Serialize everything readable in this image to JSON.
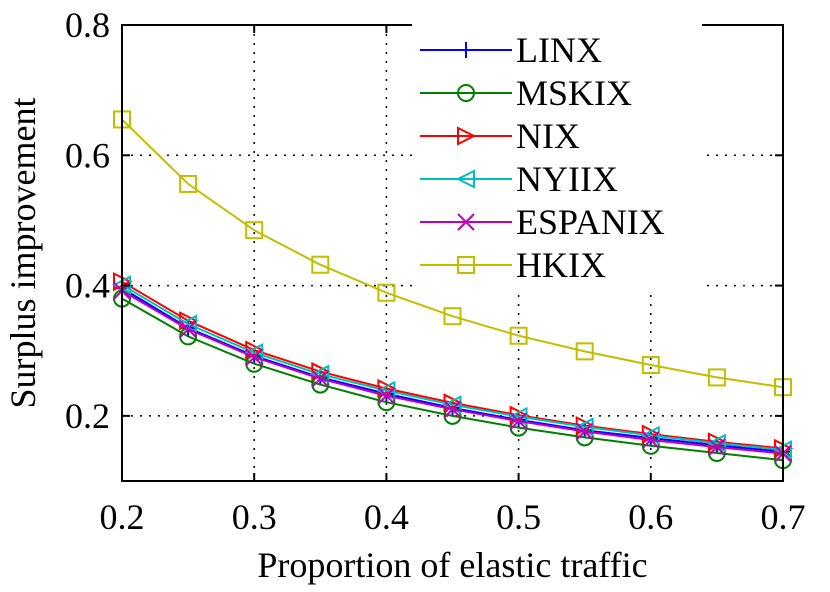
{
  "chart_data": {
    "type": "line",
    "title": "",
    "xlabel": "Proportion of elastic traffic",
    "ylabel": "Surplus improvement",
    "xlim": [
      0.2,
      0.7
    ],
    "ylim": [
      0.1,
      0.8
    ],
    "xticks": [
      0.2,
      0.3,
      0.4,
      0.5,
      0.6,
      0.7
    ],
    "yticks": [
      0.2,
      0.4,
      0.6,
      0.8
    ],
    "xtick_labels": [
      "0.2",
      "0.3",
      "0.4",
      "0.5",
      "0.6",
      "0.7"
    ],
    "ytick_labels": [
      "0.2",
      "0.4",
      "0.6",
      "0.8"
    ],
    "grid": true,
    "legend_position": "top-right",
    "x": [
      0.2,
      0.25,
      0.3,
      0.35,
      0.4,
      0.45,
      0.5,
      0.55,
      0.6,
      0.65,
      0.7
    ],
    "series": [
      {
        "name": "LINX",
        "color": "#0000ff",
        "marker": "plus",
        "values": [
          0.396,
          0.335,
          0.292,
          0.259,
          0.234,
          0.212,
          0.194,
          0.178,
          0.166,
          0.155,
          0.145
        ]
      },
      {
        "name": "MSKIX",
        "color": "#007f00",
        "marker": "circle",
        "values": [
          0.38,
          0.322,
          0.28,
          0.248,
          0.221,
          0.2,
          0.182,
          0.167,
          0.154,
          0.143,
          0.132
        ]
      },
      {
        "name": "NIX",
        "color": "#ff0000",
        "marker": "triangle-right",
        "values": [
          0.406,
          0.346,
          0.301,
          0.268,
          0.242,
          0.22,
          0.201,
          0.185,
          0.172,
          0.16,
          0.15
        ]
      },
      {
        "name": "NYIIX",
        "color": "#00bfbf",
        "marker": "triangle-left",
        "values": [
          0.401,
          0.341,
          0.297,
          0.264,
          0.239,
          0.217,
          0.199,
          0.183,
          0.17,
          0.158,
          0.148
        ]
      },
      {
        "name": "ESPANIX",
        "color": "#bf00bf",
        "marker": "x",
        "values": [
          0.392,
          0.333,
          0.29,
          0.257,
          0.231,
          0.21,
          0.192,
          0.176,
          0.163,
          0.152,
          0.142
        ]
      },
      {
        "name": "HKIX",
        "color": "#bfbf00",
        "marker": "square",
        "values": [
          0.655,
          0.556,
          0.485,
          0.432,
          0.389,
          0.353,
          0.323,
          0.299,
          0.278,
          0.259,
          0.244
        ]
      }
    ]
  }
}
